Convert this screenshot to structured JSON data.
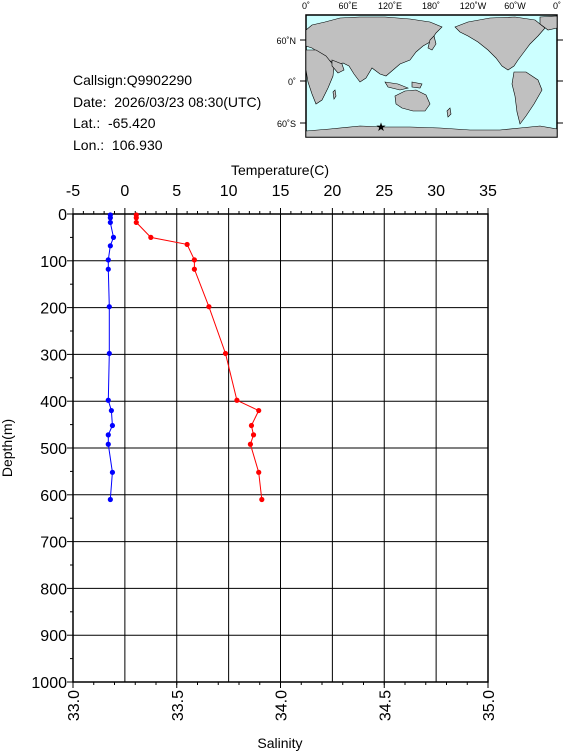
{
  "info": {
    "callsign": "Callsign:Q9902290",
    "date": "Date:  2026/03/23 08:30(UTC)",
    "lat": "Lat.:  -65.420",
    "lon": "Lon.:  106.930"
  },
  "map": {
    "lon_labels": [
      "0˚",
      "60˚E",
      "120˚E",
      "180˚",
      "120˚W",
      "60˚W",
      "0˚"
    ],
    "lat_labels": [
      "60˚N",
      "0˚",
      "60˚S"
    ],
    "ocean_color": "#ccffff",
    "land_color": "#c0c0c0",
    "marker_color": "#ff0000",
    "marker_icon": "star-icon"
  },
  "chart_data": {
    "type": "line",
    "title": "",
    "temperature_axis": {
      "label": "Temperature(C)",
      "range": [
        -5,
        35
      ],
      "ticks": [
        -5,
        0,
        5,
        10,
        15,
        20,
        25,
        30,
        35
      ]
    },
    "salinity_axis": {
      "label": "Salinity",
      "range": [
        33.0,
        35.0
      ],
      "ticks": [
        "33.0",
        "33.5",
        "34.0",
        "34.5",
        "35.0"
      ]
    },
    "depth_axis": {
      "label": "Depth(m)",
      "range": [
        0,
        1000
      ],
      "ticks": [
        0,
        100,
        200,
        300,
        400,
        500,
        600,
        700,
        800,
        900,
        1000
      ],
      "inverted": true
    },
    "grid": true,
    "series": [
      {
        "quantity": "temperature",
        "color": "#ff0000",
        "points": [
          [
            1.1,
            2
          ],
          [
            1.1,
            8
          ],
          [
            1.1,
            18
          ],
          [
            2.5,
            50
          ],
          [
            6.0,
            65
          ],
          [
            6.7,
            98
          ],
          [
            6.7,
            118
          ],
          [
            8.1,
            198
          ],
          [
            9.7,
            298
          ],
          [
            10.8,
            398
          ],
          [
            12.9,
            420
          ],
          [
            12.2,
            452
          ],
          [
            12.4,
            472
          ],
          [
            12.1,
            492
          ],
          [
            12.9,
            552
          ],
          [
            13.2,
            610
          ]
        ]
      },
      {
        "quantity": "salinity",
        "color": "#0000ff",
        "points": [
          [
            33.18,
            2
          ],
          [
            33.18,
            8
          ],
          [
            33.18,
            18
          ],
          [
            33.195,
            50
          ],
          [
            33.18,
            68
          ],
          [
            33.17,
            98
          ],
          [
            33.17,
            118
          ],
          [
            33.175,
            198
          ],
          [
            33.175,
            298
          ],
          [
            33.17,
            398
          ],
          [
            33.185,
            420
          ],
          [
            33.19,
            452
          ],
          [
            33.17,
            472
          ],
          [
            33.17,
            492
          ],
          [
            33.19,
            552
          ],
          [
            33.18,
            610
          ]
        ]
      }
    ]
  }
}
